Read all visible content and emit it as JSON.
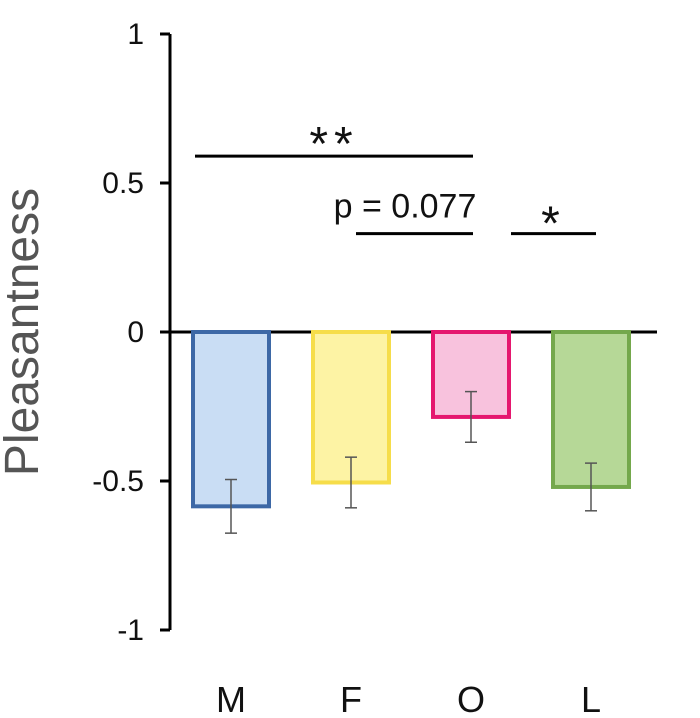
{
  "chart_data": {
    "type": "bar",
    "ylabel": "Pleasantness",
    "xlabel": "",
    "ylim": [
      -1,
      1
    ],
    "yticks": [
      {
        "value": 1,
        "label": "1"
      },
      {
        "value": 0.5,
        "label": "0.5"
      },
      {
        "value": 0,
        "label": "0"
      },
      {
        "value": -0.5,
        "label": "-0.5"
      },
      {
        "value": -1,
        "label": "-1"
      }
    ],
    "categories": [
      "M",
      "F",
      "O",
      "L"
    ],
    "values": [
      -0.585,
      -0.505,
      -0.285,
      -0.52
    ],
    "errors": [
      0.09,
      0.085,
      0.085,
      0.08
    ],
    "colors": [
      {
        "fill": "#c9ddf4",
        "stroke": "#3d68a6"
      },
      {
        "fill": "#fdf3a4",
        "stroke": "#f6dd4a"
      },
      {
        "fill": "#f8c2dd",
        "stroke": "#e5176f"
      },
      {
        "fill": "#b6d897",
        "stroke": "#74a84c"
      }
    ],
    "grid": false,
    "annotations": [
      {
        "from": 0,
        "to": 2,
        "text": "**",
        "y": 0.59,
        "kind": "sig"
      },
      {
        "from": 1,
        "to": 2,
        "text": "p = 0.077",
        "y": 0.33,
        "kind": "p"
      },
      {
        "from": 2,
        "to": 3,
        "text": "*",
        "y": 0.33,
        "kind": "sig"
      }
    ]
  }
}
